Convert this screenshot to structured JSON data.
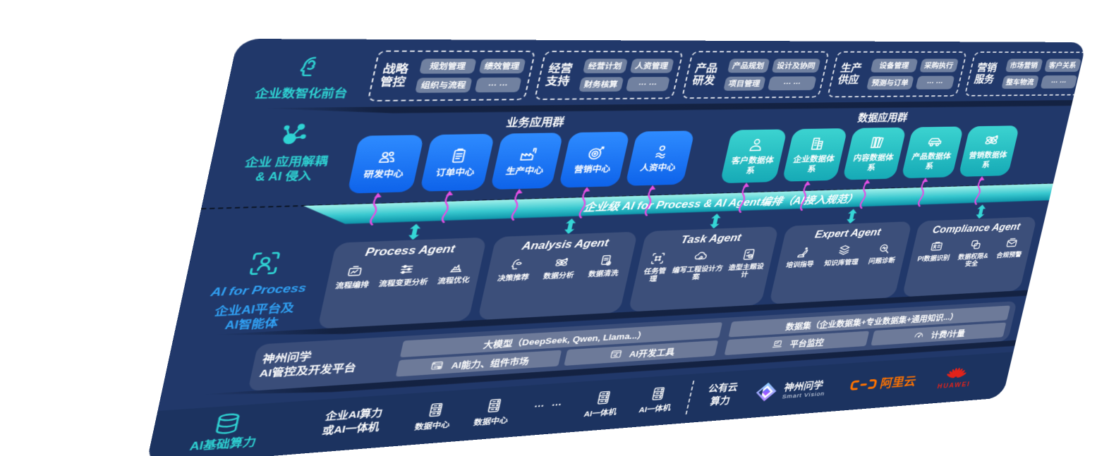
{
  "colors": {
    "navy": "#21386a",
    "teal": "#2fd3d3",
    "blue_tile": "#1677f0",
    "teal_tile": "#23bfc2",
    "band_teal": "#38c8cf",
    "magenta": "#e34fe3",
    "label_blue": "#31a2f5",
    "alicloud_orange": "#ff7300",
    "huawei_red": "#e2231a"
  },
  "front_office": {
    "label": "企业数智化前台",
    "groups": [
      {
        "name": "战略管控",
        "items": [
          "规划管理",
          "绩效管理",
          "组织与流程",
          "… …"
        ]
      },
      {
        "name": "经营支持",
        "items": [
          "经营计划",
          "人资管理",
          "财务核算",
          "… …"
        ]
      },
      {
        "name": "产品研发",
        "items": [
          "产品规划",
          "设计及协同",
          "项目管理",
          "… …"
        ]
      },
      {
        "name": "生产供应",
        "items": [
          "设备管理",
          "采购执行",
          "预测与订单",
          "… …"
        ]
      },
      {
        "name": "营销服务",
        "items": [
          "市场营销",
          "客户关系",
          "整车物流",
          "… …"
        ]
      }
    ]
  },
  "app_layer": {
    "label_line1": "企业 应用解耦",
    "label_line2": "& AI 侵入",
    "business": {
      "heading": "业务应用群",
      "tiles": [
        {
          "icon": "team",
          "label": "研发中心"
        },
        {
          "icon": "clipboard",
          "label": "订单中心"
        },
        {
          "icon": "factory",
          "label": "生产中心"
        },
        {
          "icon": "target",
          "label": "营销中心"
        },
        {
          "icon": "hr-person",
          "label": "人资中心"
        }
      ]
    },
    "data": {
      "heading": "数据应用群",
      "tiles": [
        {
          "icon": "person",
          "label": "客户数据体系"
        },
        {
          "icon": "building",
          "label": "企业数据体系"
        },
        {
          "icon": "books",
          "label": "内容数据体系"
        },
        {
          "icon": "car",
          "label": "产品数据体系"
        },
        {
          "icon": "atom",
          "label": "营销数据体系"
        }
      ]
    }
  },
  "gateway_band": {
    "label": "企业级 AI for Process & AI Agent编排（AI接入规范）"
  },
  "ai_platform": {
    "label_en": "AI for Process",
    "label_line1": "企业AI平台及",
    "label_line2": "AI智能体",
    "agents": [
      {
        "title": "Process Agent",
        "items": [
          {
            "icon": "flow-box",
            "label": "流程编排"
          },
          {
            "icon": "sliders",
            "label": "流程变更分析"
          },
          {
            "icon": "medal",
            "label": "流程优化"
          }
        ]
      },
      {
        "title": "Analysis Agent",
        "items": [
          {
            "icon": "head-chat",
            "label": "决策推荐"
          },
          {
            "icon": "atom",
            "label": "数据分析"
          },
          {
            "icon": "doc-gear",
            "label": "数据清洗"
          }
        ]
      },
      {
        "title": "Task Agent",
        "items": [
          {
            "icon": "scan-grid",
            "label": "任务管理"
          },
          {
            "icon": "cloud-edit",
            "label": "编写工程设计方案"
          },
          {
            "icon": "checklist",
            "label": "造型主题设计"
          }
        ]
      },
      {
        "title": "Expert Agent",
        "items": [
          {
            "icon": "robot",
            "label": "培训指导"
          },
          {
            "icon": "layers",
            "label": "知识库管理"
          },
          {
            "icon": "diagnose",
            "label": "问题诊断"
          }
        ]
      },
      {
        "title": "Compliance Agent",
        "items": [
          {
            "icon": "id-card",
            "label": "PI数据识别"
          },
          {
            "icon": "shield-link",
            "label": "数据权限&\n安全"
          },
          {
            "icon": "mail-alert",
            "label": "合规预警"
          }
        ]
      }
    ]
  },
  "platform": {
    "label_line1": "神州问学",
    "label_line2": "AI管控及开发平台",
    "model_bar": "大模型（DeepSeek, Qwen, Llama...）",
    "dataset_bar": "数据集（企业数据集+专业数据集+通用知识...）",
    "cells": [
      {
        "icon": "app-gear",
        "label": "AI能力、组件市场"
      },
      {
        "icon": "app-tools",
        "label": "AI开发工具"
      },
      {
        "icon": "monitor",
        "label": "平台监控"
      },
      {
        "icon": "gauge",
        "label": "计费/计量"
      }
    ]
  },
  "infrastructure": {
    "label": "AI基础算力",
    "enterprise_line1": "企业AI算力",
    "enterprise_line2": "或AI一体机",
    "nodes": [
      {
        "icon": "server",
        "label": "数据中心"
      },
      {
        "icon": "server",
        "label": "数据中心"
      },
      {
        "icon": "ellipsis",
        "label": "… …"
      },
      {
        "icon": "server",
        "label": "AI一体机"
      },
      {
        "icon": "server",
        "label": "AI一体机"
      }
    ],
    "public_cloud_line1": "公有云",
    "public_cloud_line2": "算力",
    "vendors": {
      "smartvision": {
        "name": "神州问学",
        "sub": "Smart Vision"
      },
      "alicloud": {
        "name": "阿里云"
      },
      "huawei": {
        "name": "HUAWEI"
      }
    }
  }
}
